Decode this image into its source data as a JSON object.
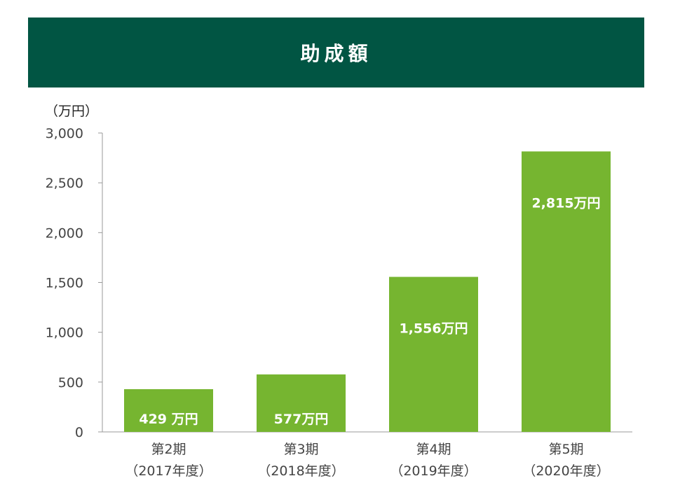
{
  "header": {
    "title": "助成額"
  },
  "chart_data": {
    "type": "bar",
    "title": "助成額",
    "ylabel": "（万円）",
    "xlabel": "",
    "ylim": [
      0,
      3000
    ],
    "yticks": [
      0,
      500,
      1000,
      1500,
      2000,
      2500,
      3000
    ],
    "ytick_labels": [
      "0",
      "500",
      "1,000",
      "1,500",
      "2,000",
      "2,500",
      "3,000"
    ],
    "categories": [
      {
        "line1": "第2期",
        "line2": "（2017年度）"
      },
      {
        "line1": "第3期",
        "line2": "（2018年度）"
      },
      {
        "line1": "第4期",
        "line2": "（2019年度）"
      },
      {
        "line1": "第5期",
        "line2": "（2020年度）"
      }
    ],
    "values": [
      429,
      577,
      1556,
      2815
    ],
    "data_labels": [
      "429 万円",
      "577万円",
      "1,556万円",
      "2,815万円"
    ],
    "bar_color": "#76B530",
    "grid": false
  }
}
